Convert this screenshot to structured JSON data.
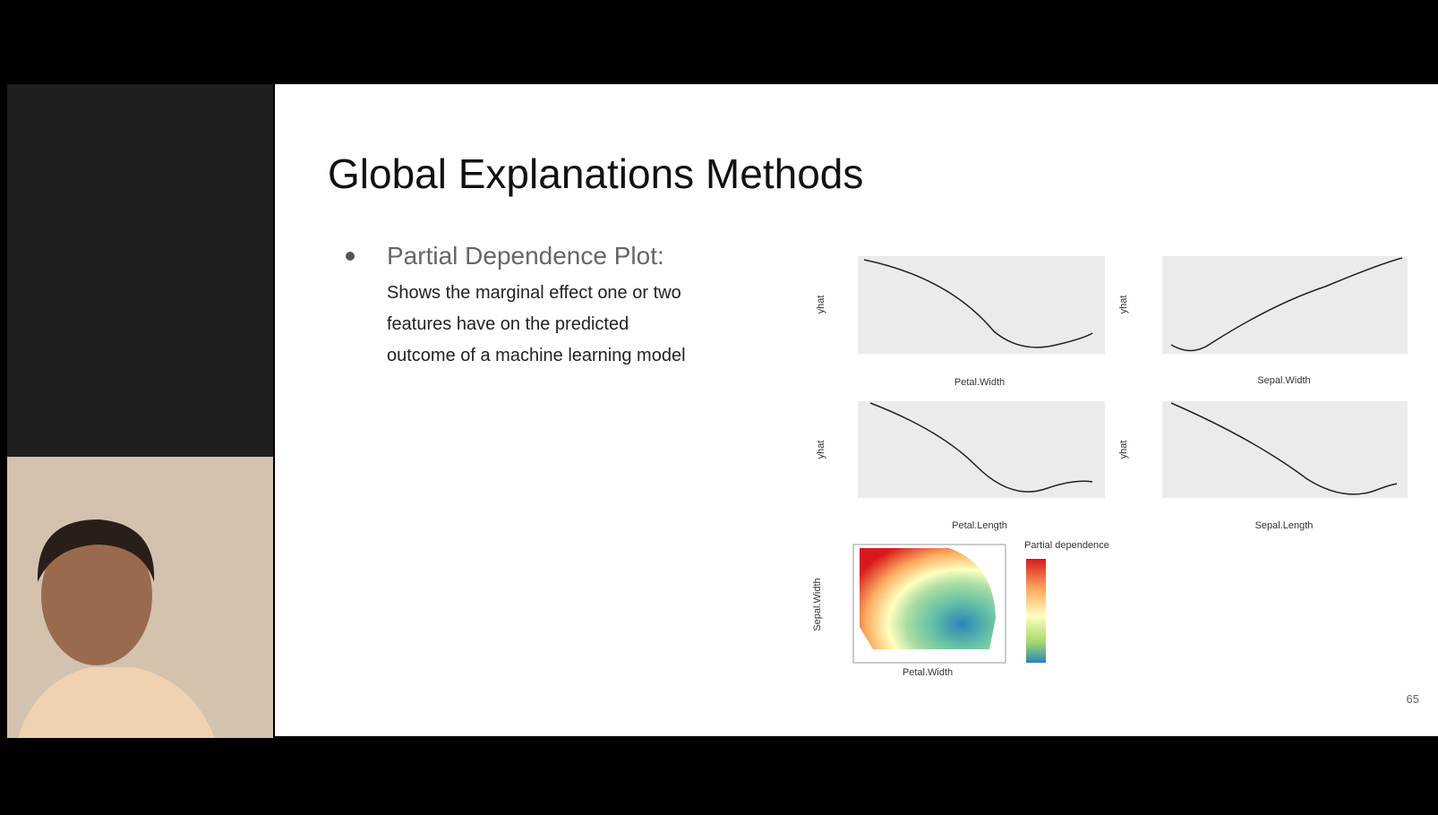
{
  "slide": {
    "title": "Global Explanations Methods",
    "bullet": {
      "heading": "Partial Dependence Plot:",
      "lines": [
        "Shows the marginal effect one or two",
        "features have on the predicted",
        "outcome of a machine learning model"
      ]
    },
    "plots": [
      {
        "ylabel": "yhat",
        "xlabel": "Petal.Width"
      },
      {
        "ylabel": "yhat",
        "xlabel": "Sepal.Width"
      },
      {
        "ylabel": "yhat",
        "xlabel": "Petal.Length"
      },
      {
        "ylabel": "yhat",
        "xlabel": "Sepal.Length"
      }
    ],
    "heatmap": {
      "ylabel": "Sepal.Width",
      "xlabel": "Petal.Width",
      "legend_title": "Partial dependence"
    },
    "page_number": "65"
  }
}
